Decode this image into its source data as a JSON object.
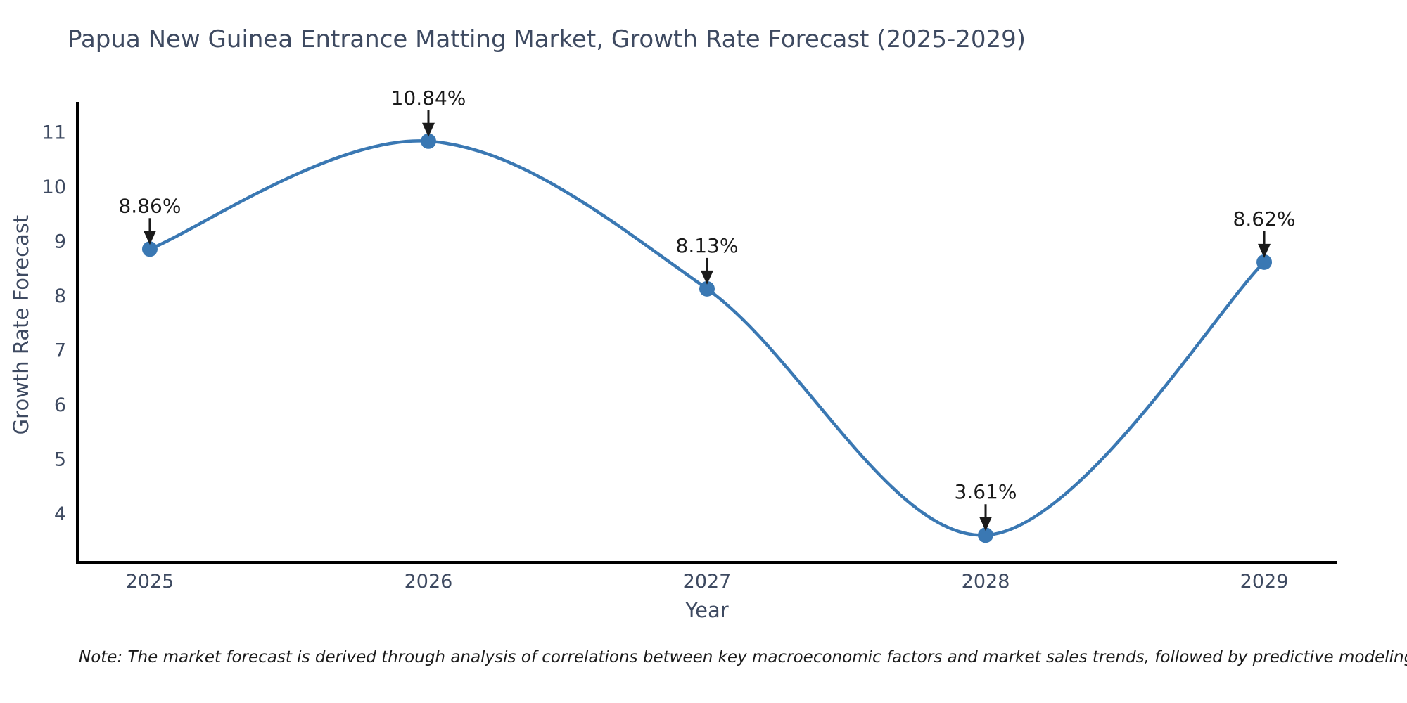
{
  "note": "Note: The market forecast is derived through analysis of correlations between key macroeconomic factors and market sales trends, followed by predictive modeling to project future sales",
  "colors": {
    "line": "#3a78b3",
    "marker": "#3a78b3",
    "axis": "#000000",
    "text": "#3e4a61",
    "annotation": "#1a1a1a"
  },
  "chart_data": {
    "type": "line",
    "title": "Papua New Guinea Entrance Matting Market, Growth Rate Forecast (2025-2029)",
    "xlabel": "Year",
    "ylabel": "Growth Rate Forecast",
    "categories": [
      "2025",
      "2026",
      "2027",
      "2028",
      "2029"
    ],
    "x": [
      2025,
      2026,
      2027,
      2028,
      2029
    ],
    "values": [
      8.86,
      10.84,
      8.13,
      3.61,
      8.62
    ],
    "point_labels": [
      "8.86%",
      "10.84%",
      "8.13%",
      "3.61%",
      "8.62%"
    ],
    "yticks": [
      4,
      5,
      6,
      7,
      8,
      9,
      10,
      11
    ],
    "xlim": [
      2024.74,
      2029.26
    ],
    "ylim": [
      3.11,
      11.56
    ],
    "grid": false,
    "legend": "none",
    "smooth": true,
    "annotation_style": "value label with downward arrow above each data point"
  }
}
